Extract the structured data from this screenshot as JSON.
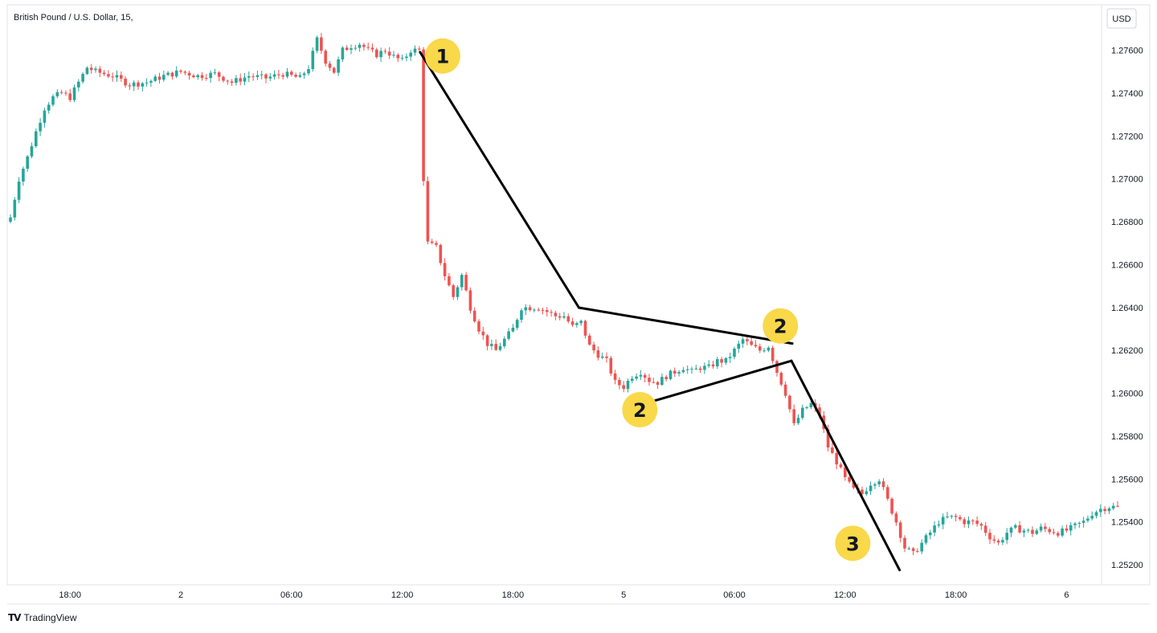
{
  "header": {
    "symbol_title": "British Pound / U.S. Dollar, 15,",
    "currency_button": "USD"
  },
  "footer": {
    "brand_logo": "TV",
    "brand_name": "TradingView"
  },
  "colors": {
    "up": "#26a69a",
    "down": "#ef5350",
    "annotation_line": "#000000",
    "badge": "#f9d84a"
  },
  "chart_data": {
    "type": "candlestick",
    "title": "British Pound / U.S. Dollar, 15,",
    "currency": "USD",
    "ylim": [
      1.2515,
      1.2787
    ],
    "y_ticks": [
      "1.27600",
      "1.27400",
      "1.27200",
      "1.27000",
      "1.26800",
      "1.26600",
      "1.26400",
      "1.26200",
      "1.26000",
      "1.25800",
      "1.25600",
      "1.25400",
      "1.25200"
    ],
    "x_ticks": [
      {
        "label": "18:00",
        "index": 14
      },
      {
        "label": "2",
        "index": 40
      },
      {
        "label": "06:00",
        "index": 66
      },
      {
        "label": "12:00",
        "index": 92
      },
      {
        "label": "18:00",
        "index": 118
      },
      {
        "label": "5",
        "index": 144
      },
      {
        "label": "06:00",
        "index": 170
      },
      {
        "label": "12:00",
        "index": 196
      },
      {
        "label": "18:00",
        "index": 222
      },
      {
        "label": "6",
        "index": 248
      }
    ],
    "anchors": [
      [
        0,
        1.2682
      ],
      [
        2,
        1.27
      ],
      [
        4,
        1.271
      ],
      [
        6,
        1.2722
      ],
      [
        8,
        1.2733
      ],
      [
        10,
        1.2738
      ],
      [
        12,
        1.274
      ],
      [
        14,
        1.2738
      ],
      [
        16,
        1.2745
      ],
      [
        18,
        1.2752
      ],
      [
        20,
        1.275
      ],
      [
        24,
        1.2748
      ],
      [
        28,
        1.2744
      ],
      [
        32,
        1.2745
      ],
      [
        36,
        1.2748
      ],
      [
        40,
        1.275
      ],
      [
        44,
        1.2748
      ],
      [
        48,
        1.2749
      ],
      [
        52,
        1.2745
      ],
      [
        56,
        1.2748
      ],
      [
        60,
        1.2747
      ],
      [
        64,
        1.2749
      ],
      [
        68,
        1.2747
      ],
      [
        70,
        1.2752
      ],
      [
        72,
        1.2765
      ],
      [
        74,
        1.2755
      ],
      [
        76,
        1.275
      ],
      [
        78,
        1.276
      ],
      [
        80,
        1.2762
      ],
      [
        82,
        1.2763
      ],
      [
        84,
        1.276
      ],
      [
        86,
        1.2758
      ],
      [
        88,
        1.276
      ],
      [
        90,
        1.2757
      ],
      [
        92,
        1.2755
      ],
      [
        94,
        1.276
      ],
      [
        96,
        1.276
      ],
      [
        97,
        1.27
      ],
      [
        98,
        1.267
      ],
      [
        100,
        1.2668
      ],
      [
        102,
        1.2655
      ],
      [
        104,
        1.2645
      ],
      [
        106,
        1.2655
      ],
      [
        108,
        1.264
      ],
      [
        110,
        1.263
      ],
      [
        112,
        1.2623
      ],
      [
        114,
        1.262
      ],
      [
        116,
        1.2625
      ],
      [
        118,
        1.263
      ],
      [
        120,
        1.264
      ],
      [
        122,
        1.264
      ],
      [
        124,
        1.264
      ],
      [
        126,
        1.2638
      ],
      [
        128,
        1.2636
      ],
      [
        130,
        1.2636
      ],
      [
        132,
        1.2631
      ],
      [
        134,
        1.2633
      ],
      [
        136,
        1.2622
      ],
      [
        138,
        1.2618
      ],
      [
        140,
        1.2615
      ],
      [
        142,
        1.2605
      ],
      [
        144,
        1.2603
      ],
      [
        146,
        1.2608
      ],
      [
        148,
        1.261
      ],
      [
        150,
        1.2606
      ],
      [
        152,
        1.2605
      ],
      [
        154,
        1.2608
      ],
      [
        156,
        1.261
      ],
      [
        158,
        1.2612
      ],
      [
        160,
        1.261
      ],
      [
        162,
        1.2612
      ],
      [
        164,
        1.2612
      ],
      [
        166,
        1.2615
      ],
      [
        168,
        1.2615
      ],
      [
        170,
        1.262
      ],
      [
        172,
        1.2625
      ],
      [
        174,
        1.2622
      ],
      [
        176,
        1.262
      ],
      [
        178,
        1.2622
      ],
      [
        180,
        1.261
      ],
      [
        182,
        1.26
      ],
      [
        184,
        1.2585
      ],
      [
        186,
        1.2592
      ],
      [
        188,
        1.2595
      ],
      [
        190,
        1.259
      ],
      [
        192,
        1.2575
      ],
      [
        194,
        1.2568
      ],
      [
        196,
        1.256
      ],
      [
        198,
        1.2555
      ],
      [
        200,
        1.2553
      ],
      [
        202,
        1.2558
      ],
      [
        204,
        1.256
      ],
      [
        206,
        1.255
      ],
      [
        208,
        1.254
      ],
      [
        210,
        1.2528
      ],
      [
        212,
        1.2525
      ],
      [
        214,
        1.253
      ],
      [
        216,
        1.2535
      ],
      [
        218,
        1.254
      ],
      [
        220,
        1.2542
      ],
      [
        222,
        1.2542
      ],
      [
        224,
        1.254
      ],
      [
        226,
        1.254
      ],
      [
        228,
        1.2538
      ],
      [
        230,
        1.2533
      ],
      [
        232,
        1.253
      ],
      [
        234,
        1.2535
      ],
      [
        236,
        1.2537
      ],
      [
        238,
        1.2536
      ],
      [
        240,
        1.2535
      ],
      [
        242,
        1.2537
      ],
      [
        244,
        1.2536
      ],
      [
        246,
        1.2535
      ],
      [
        248,
        1.2536
      ],
      [
        250,
        1.2538
      ],
      [
        252,
        1.254
      ],
      [
        254,
        1.2544
      ],
      [
        256,
        1.2546
      ],
      [
        258,
        1.2547
      ],
      [
        260,
        1.2547
      ]
    ],
    "annotation_lines": [
      {
        "from": [
          96.2,
          1.27591
        ],
        "to": [
          133.5,
          1.26399
        ]
      },
      {
        "from": [
          133.5,
          1.26399
        ],
        "to": [
          183.6,
          1.26232
        ]
      },
      {
        "from": [
          146.1,
          1.25935
        ],
        "to": [
          183.4,
          1.26151
        ]
      },
      {
        "from": [
          183.4,
          1.26151
        ],
        "to": [
          208.8,
          1.25175
        ]
      }
    ],
    "badges": [
      {
        "label": "1",
        "x": 101.5,
        "y": 1.27573
      },
      {
        "label": "2",
        "x": 180.8,
        "y": 1.26314
      },
      {
        "label": "2",
        "x": 147.8,
        "y": 1.25923
      },
      {
        "label": "3",
        "x": 197.8,
        "y": 1.253
      }
    ]
  }
}
